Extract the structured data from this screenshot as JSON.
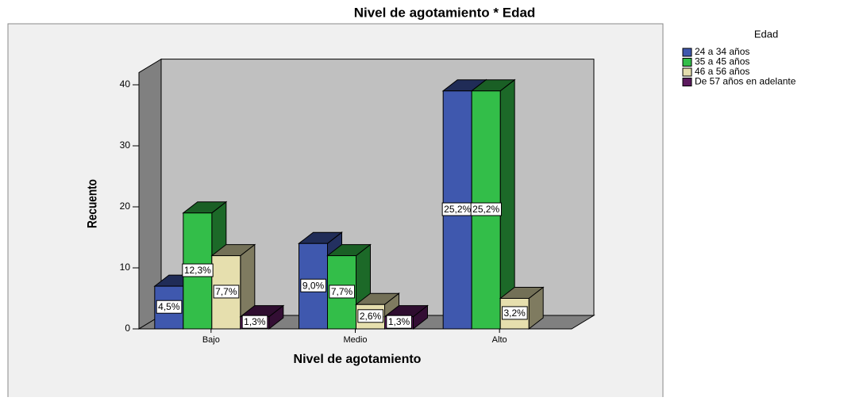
{
  "chart_data": {
    "type": "bar3d",
    "title": "Nivel de agotamiento * Edad",
    "x_label": "Nivel de agotamiento",
    "y_label": "Recuento",
    "legend_title": "Edad",
    "legend": "right",
    "categories": [
      "Bajo",
      "Medio",
      "Alto"
    ],
    "ylim": [
      0,
      42
    ],
    "yticks": [
      0,
      10,
      20,
      30,
      40
    ],
    "series": [
      {
        "name": "24 a 34 años",
        "color": "#3f58ae",
        "values": [
          7,
          14,
          39
        ],
        "percents": [
          4.5,
          9.0,
          25.2
        ],
        "percent_labels": [
          "4,5%",
          "9,0%",
          "25,2%"
        ]
      },
      {
        "name": "35 a 45 años",
        "color": "#33be49",
        "values": [
          19,
          12,
          39
        ],
        "percents": [
          12.3,
          7.7,
          25.2
        ],
        "percent_labels": [
          "12,3%",
          "7,7%",
          "25,2%"
        ]
      },
      {
        "name": "46 a 56 años",
        "color": "#e6dfae",
        "values": [
          12,
          4,
          5
        ],
        "percents": [
          7.7,
          2.6,
          3.2
        ],
        "percent_labels": [
          "7,7%",
          "2,6%",
          "3,2%"
        ]
      },
      {
        "name": "De 57 años en adelante",
        "color": "#5c1a5e",
        "values": [
          2,
          2,
          null
        ],
        "percents": [
          1.3,
          1.3,
          null
        ],
        "percent_labels": [
          "1,3%",
          "1,3%",
          null
        ]
      }
    ]
  }
}
